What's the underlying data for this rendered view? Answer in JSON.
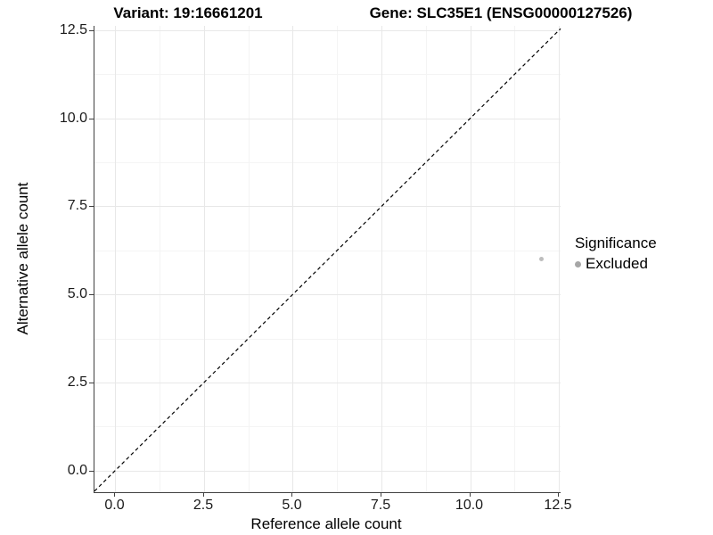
{
  "titles": {
    "variant": "Variant: 19:16661201",
    "gene": "Gene: SLC35E1 (ENSG00000127526)"
  },
  "chart_data": {
    "type": "scatter",
    "title_left": "Variant: 19:16661201",
    "title_right": "Gene: SLC35E1 (ENSG00000127526)",
    "xlabel": "Reference allele count",
    "ylabel": "Alternative allele count",
    "xlim": [
      -0.59,
      12.55
    ],
    "ylim": [
      -0.62,
      12.63
    ],
    "x_ticks": {
      "values": [
        0,
        2.5,
        5,
        7.5,
        10,
        12.5
      ],
      "labels": [
        "0.0",
        "2.5",
        "5.0",
        "7.5",
        "10.0",
        "12.5"
      ]
    },
    "y_ticks": {
      "values": [
        0,
        2.5,
        5,
        7.5,
        10,
        12.5
      ],
      "labels": [
        "0.0",
        "2.5",
        "5.0",
        "7.5",
        "10.0",
        "12.5"
      ]
    },
    "grid": {
      "major": true,
      "minor": true,
      "major_color": "#e8e8e8",
      "minor_color": "#f4f4f4"
    },
    "identity_line": {
      "slope": 1,
      "intercept": 0,
      "style": "dashed",
      "color": "#000000"
    },
    "series": [
      {
        "name": "Excluded",
        "color": "#bdbdbd",
        "point_radius": 2.5,
        "points": [
          {
            "x": 12,
            "y": 6
          }
        ]
      }
    ],
    "legend": {
      "position": "right",
      "title": "Significance",
      "entries": [
        {
          "label": "Excluded",
          "color": "#a6a6a6"
        }
      ]
    }
  }
}
